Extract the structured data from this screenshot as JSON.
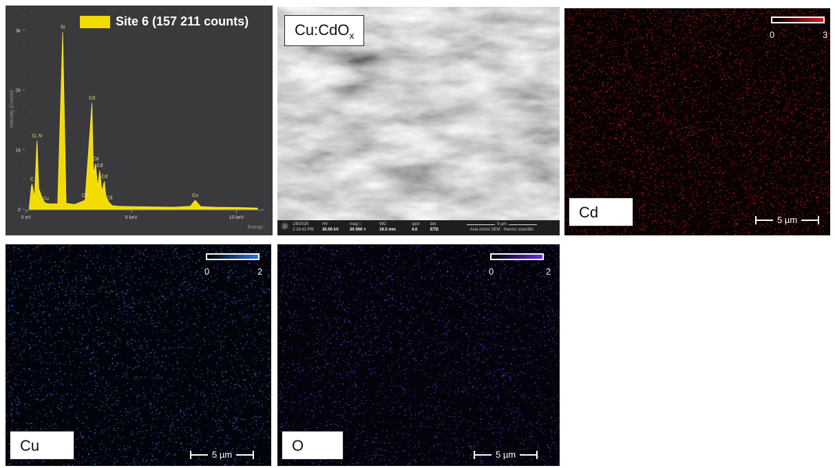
{
  "eds": {
    "legend": "Site 6 (157 211 counts)",
    "legend_color": "#f2dc00",
    "ylabel": "Intensity (Counts)",
    "xlabel": "Energy",
    "yticks": [
      "3k",
      "2k",
      "1k",
      "0"
    ],
    "xticks": [
      "0 eV",
      "5 keV",
      "10 keV"
    ],
    "peaks": [
      "Si",
      "Cd",
      "O, N",
      "C",
      "Cu",
      "Cd",
      "Cd",
      "Cd",
      "Cd",
      "Cd",
      "Cu"
    ]
  },
  "chart_data": {
    "type": "area",
    "title": "",
    "xlabel": "Energy",
    "ylabel": "Intensity (Counts)",
    "xlim": [
      0,
      11
    ],
    "ylim": [
      0,
      3300
    ],
    "x_unit": "keV",
    "series": [
      {
        "name": "Site 6 (157 211 counts)",
        "x": [
          0.15,
          0.25,
          0.28,
          0.4,
          0.5,
          0.52,
          0.6,
          0.8,
          0.93,
          1.1,
          1.5,
          1.74,
          1.9,
          2.3,
          2.8,
          3.13,
          3.2,
          3.3,
          3.4,
          3.5,
          3.6,
          3.72,
          3.8,
          3.95,
          4.1,
          4.4,
          5.0,
          6.0,
          7.0,
          7.8,
          8.04,
          8.3,
          9.0,
          10.0,
          11.0
        ],
        "y": [
          50,
          380,
          420,
          200,
          1050,
          1150,
          350,
          150,
          100,
          90,
          90,
          2970,
          100,
          80,
          150,
          1780,
          600,
          760,
          380,
          650,
          300,
          470,
          200,
          110,
          60,
          50,
          45,
          40,
          35,
          50,
          150,
          45,
          35,
          30,
          20
        ]
      }
    ],
    "annotations": [
      {
        "text": "Si",
        "x": 1.74
      },
      {
        "text": "Cd",
        "x": 3.13
      },
      {
        "text": "O, N",
        "x": 0.52
      },
      {
        "text": "C",
        "x": 0.28
      },
      {
        "text": "Cu",
        "x": 0.93
      },
      {
        "text": "Cd",
        "x": 2.8
      },
      {
        "text": "Cd",
        "x": 3.3
      },
      {
        "text": "Cd",
        "x": 3.5
      },
      {
        "text": "Cd",
        "x": 3.72
      },
      {
        "text": "Cd",
        "x": 3.95
      },
      {
        "text": "Cu",
        "x": 8.04
      }
    ],
    "legend": "top-right"
  },
  "sem": {
    "label_main": "Cu:CdO",
    "label_sub": "x",
    "footer": {
      "date": "1/8/2025",
      "time": "2:16:43 PM",
      "hv_label": "HV",
      "hv": "30.00 kV",
      "mag_label": "mag",
      "mag": "20 000 ×",
      "wd_label": "WD",
      "wd": "19.5 mm",
      "spot_label": "spot",
      "spot": "4.0",
      "det_label": "det",
      "det": "ETD",
      "scale": "5 µm",
      "instrument": "Axia chemi SEM · thermo scientific"
    }
  },
  "maps": [
    {
      "element": "Cd",
      "cb_min": "0",
      "cb_max": "3",
      "scale": "5 µm",
      "color": "#c01818",
      "gradient_end": "#e01a1a"
    },
    {
      "element": "Cu",
      "cb_min": "0",
      "cb_max": "2",
      "scale": "5 µm",
      "color": "#3a6fd0",
      "gradient_end": "#2a7ad8"
    },
    {
      "element": "O",
      "cb_min": "0",
      "cb_max": "2",
      "scale": "5 µm",
      "color": "#6a3ad0",
      "gradient_end": "#6b2ee0"
    }
  ]
}
